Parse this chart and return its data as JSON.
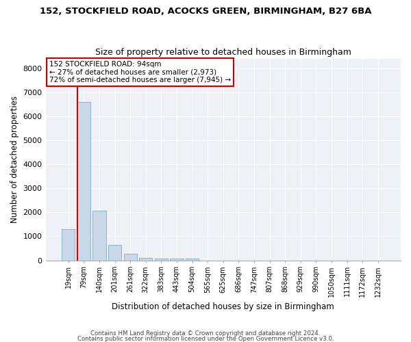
{
  "title_line1": "152, STOCKFIELD ROAD, ACOCKS GREEN, BIRMINGHAM, B27 6BA",
  "title_line2": "Size of property relative to detached houses in Birmingham",
  "xlabel": "Distribution of detached houses by size in Birmingham",
  "ylabel": "Number of detached properties",
  "categories": [
    "19sqm",
    "79sqm",
    "140sqm",
    "201sqm",
    "261sqm",
    "322sqm",
    "383sqm",
    "443sqm",
    "504sqm",
    "565sqm",
    "625sqm",
    "686sqm",
    "747sqm",
    "807sqm",
    "868sqm",
    "929sqm",
    "990sqm",
    "1050sqm",
    "1111sqm",
    "1172sqm",
    "1232sqm"
  ],
  "values": [
    1300,
    6600,
    2080,
    650,
    270,
    110,
    80,
    60,
    60,
    0,
    0,
    0,
    0,
    0,
    0,
    0,
    0,
    0,
    0,
    0,
    0
  ],
  "bar_color": "#c8d8e8",
  "bar_edge_color": "#8ab4cc",
  "annotation_text_line1": "152 STOCKFIELD ROAD: 94sqm",
  "annotation_text_line2": "← 27% of detached houses are smaller (2,973)",
  "annotation_text_line3": "72% of semi-detached houses are larger (7,945) →",
  "annotation_box_facecolor": "white",
  "annotation_edge_color": "#cc0000",
  "property_line_x": 0.575,
  "property_line_color": "#cc0000",
  "ylim": [
    0,
    8400
  ],
  "yticks": [
    0,
    1000,
    2000,
    3000,
    4000,
    5000,
    6000,
    7000,
    8000
  ],
  "background_color": "#eef2f7",
  "grid_color": "white",
  "footer_line1": "Contains HM Land Registry data © Crown copyright and database right 2024.",
  "footer_line2": "Contains public sector information licensed under the Open Government Licence v3.0."
}
